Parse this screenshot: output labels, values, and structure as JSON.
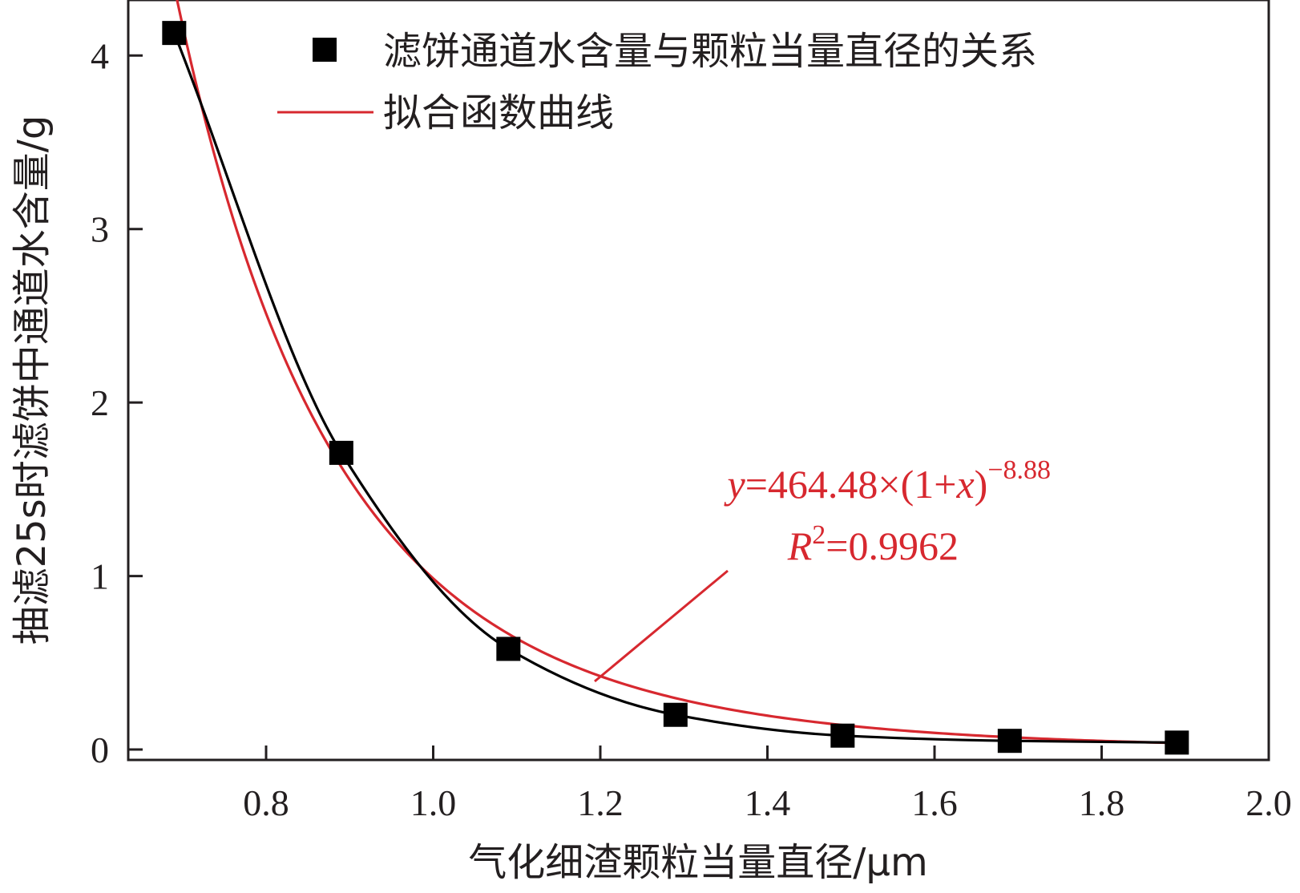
{
  "chart_data": {
    "type": "scatter",
    "title": "",
    "xlabel": "气化细渣颗粒当量直径/μm",
    "ylabel": "抽滤25s时滤饼中通道水含量/g",
    "xlim": [
      0.635,
      2.0
    ],
    "ylim": [
      -0.06,
      4.32
    ],
    "x_ticks": [
      0.8,
      1.0,
      1.2,
      1.4,
      1.6,
      1.8,
      2.0
    ],
    "x_tick_labels": [
      "0.8",
      "1.0",
      "1.2",
      "1.4",
      "1.6",
      "1.8",
      "2.0"
    ],
    "y_ticks": [
      0,
      1,
      2,
      3,
      4
    ],
    "y_tick_labels": [
      "0",
      "1",
      "2",
      "3",
      "4"
    ],
    "grid": false,
    "legend": {
      "placement": "top-right",
      "entries": [
        {
          "label": "滤饼通道水含量与颗粒当量直径的关系",
          "marker": "square",
          "color": "#000000"
        },
        {
          "label": "拟合函数曲线",
          "marker": "line",
          "color": "#d7282f"
        }
      ]
    },
    "series": [
      {
        "name": "滤饼通道水含量与颗粒当量直径的关系",
        "kind": "scatter-with-smooth-line",
        "color": "#000000",
        "x": [
          0.69,
          0.89,
          1.09,
          1.29,
          1.49,
          1.69,
          1.89
        ],
        "y": [
          4.13,
          1.71,
          0.58,
          0.2,
          0.08,
          0.05,
          0.04
        ]
      },
      {
        "name": "拟合函数曲线",
        "kind": "line",
        "color": "#d7282f",
        "function": "power",
        "coef_a": 464.48,
        "exponent": -8.88,
        "x_range": [
          0.69,
          1.89
        ]
      }
    ],
    "annotation": {
      "y_var": "y",
      "equation_body": "=464.48×(1+",
      "x_var": "x",
      "equation_close": ")",
      "equation_exponent": "−8.88",
      "r_symbol": "R",
      "r_power": "2",
      "r_value": "=0.9962",
      "color": "#d7282f"
    }
  }
}
